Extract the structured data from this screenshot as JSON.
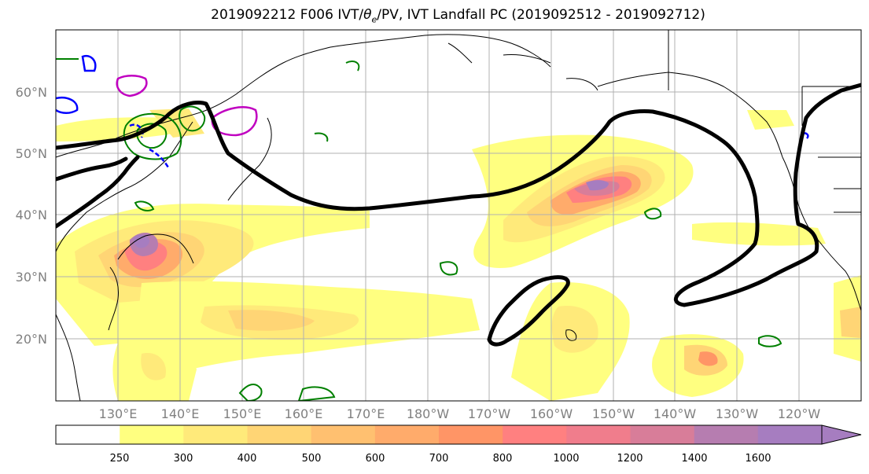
{
  "title_base": "2019092212 F006 IVT/",
  "title_symbol": "θ",
  "title_sub": "e",
  "title_rest": "/PV, IVT Landfall PC (2019092512 - 2019092712)",
  "lat_labels": [
    "60°N",
    "50°N",
    "40°N",
    "30°N",
    "20°N"
  ],
  "lon_labels": [
    "130°E",
    "140°E",
    "150°E",
    "160°E",
    "170°E",
    "180°W",
    "170°W",
    "160°W",
    "150°W",
    "140°W",
    "130°W",
    "120°W"
  ],
  "colorbar": {
    "ticks": [
      "250",
      "300",
      "400",
      "500",
      "600",
      "700",
      "800",
      "1000",
      "1200",
      "1400",
      "1600"
    ],
    "colors": [
      "#ffffff",
      "#ffff80",
      "#ffea7a",
      "#ffd575",
      "#ffc070",
      "#ffab6b",
      "#ff9566",
      "#ff8080",
      "#f07d8c",
      "#d87d99",
      "#b67db0",
      "#a67dc0"
    ]
  },
  "contour_colors": {
    "ivt_landfall": "#000000",
    "theta_e": "#008000",
    "pv_neg": "#0000ff",
    "pv_pos": "#c000c0",
    "coast": "#000000"
  }
}
